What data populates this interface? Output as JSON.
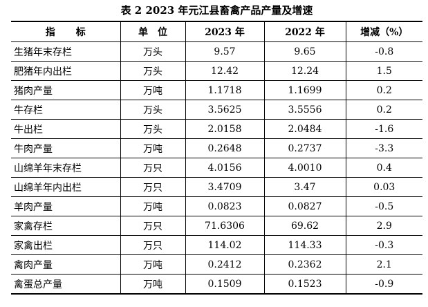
{
  "table_title": "表 2    2023 年元江县畜禽产品产量及增速",
  "headers": {
    "indicator": "指标",
    "unit": "单位",
    "year_2023": "2023 年",
    "year_2022": "2022 年",
    "change": "增减（%）"
  },
  "rows": [
    {
      "name": "生猪年末存栏",
      "unit": "万头",
      "y2023": "9.57",
      "y2022": "9.65",
      "change": "-0.8"
    },
    {
      "name": "肥猪年内出栏",
      "unit": "万头",
      "y2023": "12.42",
      "y2022": "12.24",
      "change": "1.5"
    },
    {
      "name": "猪肉产量",
      "unit": "万吨",
      "y2023": "1.1718",
      "y2022": "1.1699",
      "change": "0.2"
    },
    {
      "name": "牛存栏",
      "unit": "万头",
      "y2023": "3.5625",
      "y2022": "3.5556",
      "change": "0.2"
    },
    {
      "name": "牛出栏",
      "unit": "万头",
      "y2023": "2.0158",
      "y2022": "2.0484",
      "change": "-1.6"
    },
    {
      "name": "牛肉产量",
      "unit": "万吨",
      "y2023": "0.2648",
      "y2022": "0.2737",
      "change": "-3.3"
    },
    {
      "name": "山绵羊年末存栏",
      "unit": "万只",
      "y2023": "4.0156",
      "y2022": "4.0010",
      "change": "0.4"
    },
    {
      "name": "山绵羊年内出栏",
      "unit": "万只",
      "y2023": "3.4709",
      "y2022": "3.47",
      "change": "0.03"
    },
    {
      "name": "羊肉产量",
      "unit": "万吨",
      "y2023": "0.0823",
      "y2022": "0.0827",
      "change": "-0.5"
    },
    {
      "name": "家禽存栏",
      "unit": "万只",
      "y2023": "71.6306",
      "y2022": "69.62",
      "change": "2.9"
    },
    {
      "name": "家禽出栏",
      "unit": "万只",
      "y2023": "114.02",
      "y2022": "114.33",
      "change": "-0.3"
    },
    {
      "name": "禽肉产量",
      "unit": "万吨",
      "y2023": "0.2412",
      "y2022": "0.2362",
      "change": "2.1"
    },
    {
      "name": "禽蛋总产量",
      "unit": "万吨",
      "y2023": "0.1509",
      "y2022": "0.1523",
      "change": "-0.9"
    }
  ]
}
